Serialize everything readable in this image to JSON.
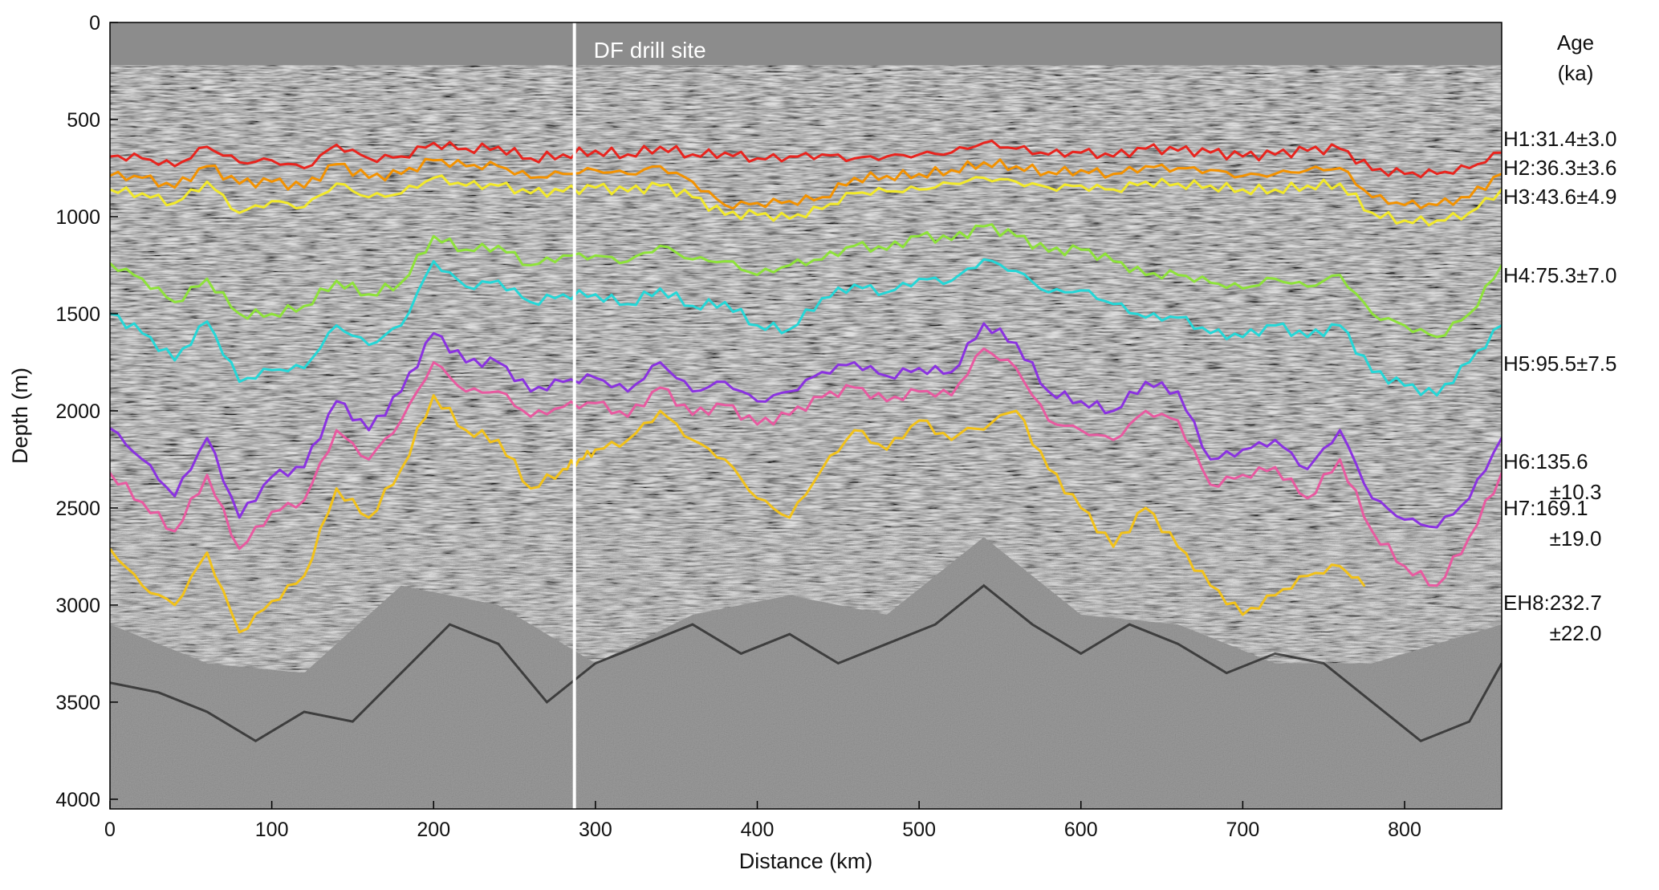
{
  "chart_data": {
    "type": "line",
    "title": "",
    "xlabel": "Distance (km)",
    "ylabel": "Depth (m)",
    "xlim": [
      0,
      860
    ],
    "ylim": [
      4050,
      0
    ],
    "y_inverted": true,
    "grid": false,
    "x_ticks": [
      0,
      100,
      200,
      300,
      400,
      500,
      600,
      700,
      800
    ],
    "y_ticks": [
      0,
      500,
      1000,
      1500,
      2000,
      2500,
      3000,
      3500,
      4000
    ],
    "background": "radargram (grayscale)",
    "annotations": [
      {
        "text": "DF drill site",
        "x": 287
      }
    ],
    "legend_title": [
      "Age",
      "(ka)"
    ],
    "series": [
      {
        "name": "H1:31.4±3.0",
        "label_lines": [
          "H1:31.4±3.0"
        ],
        "color": "#e8241e",
        "x": [
          0,
          20,
          40,
          60,
          80,
          100,
          120,
          140,
          160,
          180,
          200,
          220,
          240,
          260,
          280,
          300,
          320,
          340,
          360,
          380,
          400,
          420,
          440,
          460,
          480,
          500,
          520,
          540,
          560,
          580,
          600,
          620,
          640,
          660,
          680,
          700,
          720,
          740,
          760,
          780,
          800,
          820,
          840,
          860
        ],
        "y": [
          690,
          700,
          740,
          640,
          720,
          710,
          750,
          630,
          700,
          690,
          620,
          650,
          640,
          700,
          680,
          660,
          680,
          640,
          680,
          670,
          700,
          690,
          680,
          700,
          690,
          680,
          670,
          620,
          650,
          680,
          670,
          690,
          650,
          660,
          670,
          690,
          680,
          660,
          650,
          760,
          780,
          780,
          750,
          670
        ]
      },
      {
        "name": "H2:36.3±3.6",
        "label_lines": [
          "H2:36.3±3.6"
        ],
        "color": "#f39200",
        "x": [
          0,
          20,
          40,
          60,
          80,
          100,
          120,
          140,
          160,
          180,
          200,
          220,
          240,
          260,
          280,
          300,
          320,
          340,
          360,
          380,
          400,
          420,
          440,
          460,
          480,
          500,
          520,
          540,
          560,
          580,
          600,
          620,
          640,
          660,
          680,
          700,
          720,
          740,
          760,
          780,
          800,
          820,
          840,
          860
        ],
        "y": [
          790,
          800,
          850,
          740,
          830,
          820,
          850,
          730,
          800,
          780,
          710,
          740,
          740,
          800,
          780,
          760,
          780,
          740,
          820,
          940,
          930,
          920,
          900,
          800,
          790,
          780,
          760,
          720,
          740,
          770,
          760,
          780,
          740,
          750,
          760,
          790,
          780,
          760,
          750,
          900,
          940,
          940,
          900,
          780
        ]
      },
      {
        "name": "H3:43.6±4.9",
        "label_lines": [
          "H3:43.6±4.9"
        ],
        "color": "#f2e92a",
        "x": [
          0,
          20,
          40,
          60,
          80,
          100,
          120,
          140,
          160,
          180,
          200,
          220,
          240,
          260,
          280,
          300,
          320,
          340,
          360,
          380,
          400,
          420,
          440,
          460,
          480,
          500,
          520,
          540,
          560,
          580,
          600,
          620,
          640,
          660,
          680,
          700,
          720,
          740,
          760,
          780,
          800,
          820,
          840,
          860
        ],
        "y": [
          860,
          880,
          930,
          820,
          980,
          920,
          950,
          830,
          900,
          880,
          800,
          840,
          840,
          880,
          870,
          850,
          870,
          840,
          900,
          990,
          990,
          1010,
          960,
          880,
          870,
          860,
          830,
          800,
          820,
          850,
          840,
          860,
          820,
          830,
          840,
          860,
          860,
          840,
          830,
          980,
          1020,
          1020,
          980,
          860
        ]
      },
      {
        "name": "H4:75.3±7.0",
        "label_lines": [
          "H4:75.3±7.0"
        ],
        "color": "#8ee23a",
        "x": [
          0,
          20,
          40,
          60,
          80,
          100,
          120,
          140,
          160,
          180,
          200,
          220,
          240,
          260,
          280,
          300,
          320,
          340,
          360,
          380,
          400,
          420,
          440,
          460,
          480,
          500,
          520,
          540,
          560,
          580,
          600,
          620,
          640,
          660,
          680,
          700,
          720,
          740,
          760,
          780,
          800,
          820,
          840,
          860
        ],
        "y": [
          1240,
          1320,
          1440,
          1320,
          1500,
          1500,
          1460,
          1330,
          1400,
          1340,
          1100,
          1170,
          1150,
          1250,
          1200,
          1200,
          1230,
          1150,
          1220,
          1230,
          1300,
          1250,
          1220,
          1150,
          1170,
          1100,
          1120,
          1050,
          1100,
          1180,
          1170,
          1230,
          1300,
          1300,
          1340,
          1370,
          1320,
          1360,
          1300,
          1500,
          1560,
          1620,
          1500,
          1250
        ]
      },
      {
        "name": "H5:95.5±7.5",
        "label_lines": [
          "H5:95.5±7.5"
        ],
        "color": "#25d7d7",
        "x": [
          0,
          20,
          40,
          60,
          80,
          100,
          120,
          140,
          160,
          180,
          200,
          220,
          240,
          260,
          280,
          300,
          320,
          340,
          360,
          380,
          400,
          420,
          440,
          460,
          480,
          500,
          520,
          540,
          560,
          580,
          600,
          620,
          640,
          660,
          680,
          700,
          720,
          740,
          760,
          780,
          800,
          820,
          840,
          860
        ],
        "y": [
          1500,
          1600,
          1740,
          1540,
          1850,
          1790,
          1780,
          1560,
          1660,
          1560,
          1230,
          1360,
          1330,
          1440,
          1400,
          1400,
          1450,
          1370,
          1460,
          1440,
          1560,
          1580,
          1420,
          1350,
          1390,
          1320,
          1330,
          1220,
          1280,
          1390,
          1380,
          1450,
          1520,
          1520,
          1600,
          1620,
          1560,
          1620,
          1560,
          1800,
          1870,
          1920,
          1750,
          1560
        ]
      },
      {
        "name": "H6:135.6 ±10.3",
        "label_lines": [
          "H6:135.6",
          "±10.3"
        ],
        "color": "#8a32e0",
        "x": [
          0,
          20,
          40,
          60,
          80,
          100,
          120,
          140,
          160,
          180,
          200,
          220,
          240,
          260,
          280,
          300,
          320,
          340,
          360,
          380,
          400,
          420,
          440,
          460,
          480,
          500,
          520,
          540,
          560,
          580,
          600,
          620,
          640,
          660,
          680,
          700,
          720,
          740,
          760,
          780,
          800,
          820,
          840,
          860
        ],
        "y": [
          2090,
          2250,
          2440,
          2140,
          2550,
          2340,
          2290,
          1950,
          2100,
          1900,
          1600,
          1750,
          1750,
          1900,
          1850,
          1830,
          1900,
          1750,
          1900,
          1850,
          1950,
          1900,
          1800,
          1750,
          1820,
          1780,
          1800,
          1550,
          1650,
          1900,
          1950,
          2000,
          1850,
          1900,
          2250,
          2200,
          2150,
          2300,
          2100,
          2450,
          2560,
          2600,
          2450,
          2140
        ]
      },
      {
        "name": "H7:169.1 ±19.0",
        "label_lines": [
          "H7:169.1",
          "±19.0"
        ],
        "color": "#e85aa0",
        "x": [
          0,
          20,
          40,
          60,
          80,
          100,
          120,
          140,
          160,
          180,
          200,
          220,
          240,
          260,
          280,
          300,
          320,
          340,
          360,
          380,
          400,
          420,
          440,
          460,
          480,
          500,
          520,
          540,
          560,
          580,
          600,
          620,
          640,
          660,
          680,
          700,
          720,
          740,
          760,
          780,
          800,
          820,
          840,
          860
        ],
        "y": [
          2320,
          2470,
          2620,
          2330,
          2710,
          2520,
          2460,
          2100,
          2250,
          2050,
          1750,
          1900,
          1900,
          2030,
          1980,
          1960,
          2030,
          1880,
          2020,
          1970,
          2070,
          2020,
          1930,
          1880,
          1950,
          1900,
          1920,
          1680,
          1780,
          2050,
          2100,
          2150,
          2000,
          2050,
          2380,
          2330,
          2290,
          2450,
          2250,
          2620,
          2800,
          2900,
          2650,
          2320
        ]
      },
      {
        "name": "EH8:232.7 ±22.0",
        "label_lines": [
          "EH8:232.7",
          "±22.0"
        ],
        "color": "#f2c21a",
        "x": [
          0,
          20,
          40,
          60,
          80,
          100,
          120,
          140,
          160,
          180,
          200,
          220,
          240,
          260,
          280,
          290,
          300,
          320,
          340,
          360,
          380,
          400,
          420,
          440,
          460,
          480,
          500,
          520,
          560,
          580,
          600,
          620,
          640,
          660,
          680,
          700,
          720,
          740,
          760,
          775
        ],
        "y": [
          2710,
          2900,
          3000,
          2730,
          3140,
          2980,
          2850,
          2400,
          2550,
          2300,
          1920,
          2100,
          2150,
          2400,
          2300,
          2250,
          2200,
          2150,
          2000,
          2150,
          2250,
          2450,
          2550,
          2300,
          2100,
          2200,
          2050,
          2150,
          2000,
          2300,
          2500,
          2700,
          2500,
          2700,
          2900,
          3050,
          2950,
          2850,
          2800,
          2900
        ]
      }
    ]
  }
}
